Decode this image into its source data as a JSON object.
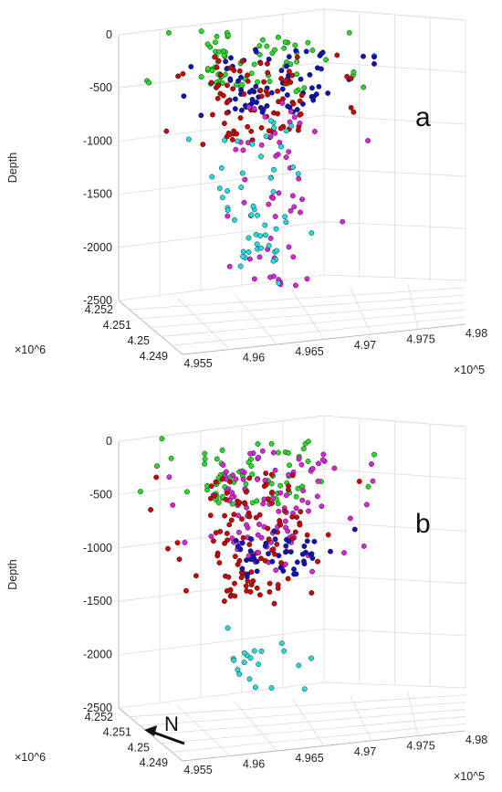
{
  "chart_data": [
    {
      "type": "scatter",
      "panel_label": "a",
      "ylabel": "Depth",
      "z_ticks": [
        "0",
        "-500",
        "-1000",
        "-1500",
        "-2000",
        "-2500"
      ],
      "zlim": [
        -2500,
        0
      ],
      "y_ticks": [
        "4.252",
        "4.251",
        "4.25",
        "4.249"
      ],
      "y_exponent": "×10^6",
      "x_ticks": [
        "4.955",
        "4.96",
        "4.965",
        "4.97",
        "4.975",
        "4.98"
      ],
      "x_exponent": "×10^5",
      "grid": true,
      "series": [
        {
          "color": "#22dd22",
          "count": 75,
          "depth_range": [
            -500,
            0
          ]
        },
        {
          "color": "#1010bb",
          "count": 75,
          "depth_range": [
            -750,
            -150
          ]
        },
        {
          "color": "#cc0000",
          "count": 85,
          "depth_range": [
            -1000,
            -200
          ]
        },
        {
          "color": "#dd22dd",
          "count": 55,
          "depth_range": [
            -2400,
            -600
          ]
        },
        {
          "color": "#22dddd",
          "count": 55,
          "depth_range": [
            -2300,
            -800
          ]
        }
      ]
    },
    {
      "type": "scatter",
      "panel_label": "b",
      "ylabel": "Depth",
      "z_ticks": [
        "0",
        "-500",
        "-1000",
        "-1500",
        "-2000",
        "-2500"
      ],
      "zlim": [
        -2500,
        0
      ],
      "y_ticks": [
        "4.252",
        "4.251",
        "4.25",
        "4.249"
      ],
      "y_exponent": "×10^6",
      "x_ticks": [
        "4.955",
        "4.96",
        "4.965",
        "4.97",
        "4.975",
        "4.98"
      ],
      "x_exponent": "×10^5",
      "grid": true,
      "north_arrow_label": "N",
      "series": [
        {
          "color": "#22dd22",
          "count": 75,
          "depth_range": [
            -600,
            0
          ]
        },
        {
          "color": "#dd22dd",
          "count": 110,
          "depth_range": [
            -1200,
            -100
          ]
        },
        {
          "color": "#cc0000",
          "count": 110,
          "depth_range": [
            -1500,
            -300
          ]
        },
        {
          "color": "#1010bb",
          "count": 45,
          "depth_range": [
            -1250,
            -850
          ]
        },
        {
          "color": "#22dddd",
          "count": 20,
          "depth_range": [
            -2400,
            -1700
          ]
        }
      ]
    }
  ]
}
